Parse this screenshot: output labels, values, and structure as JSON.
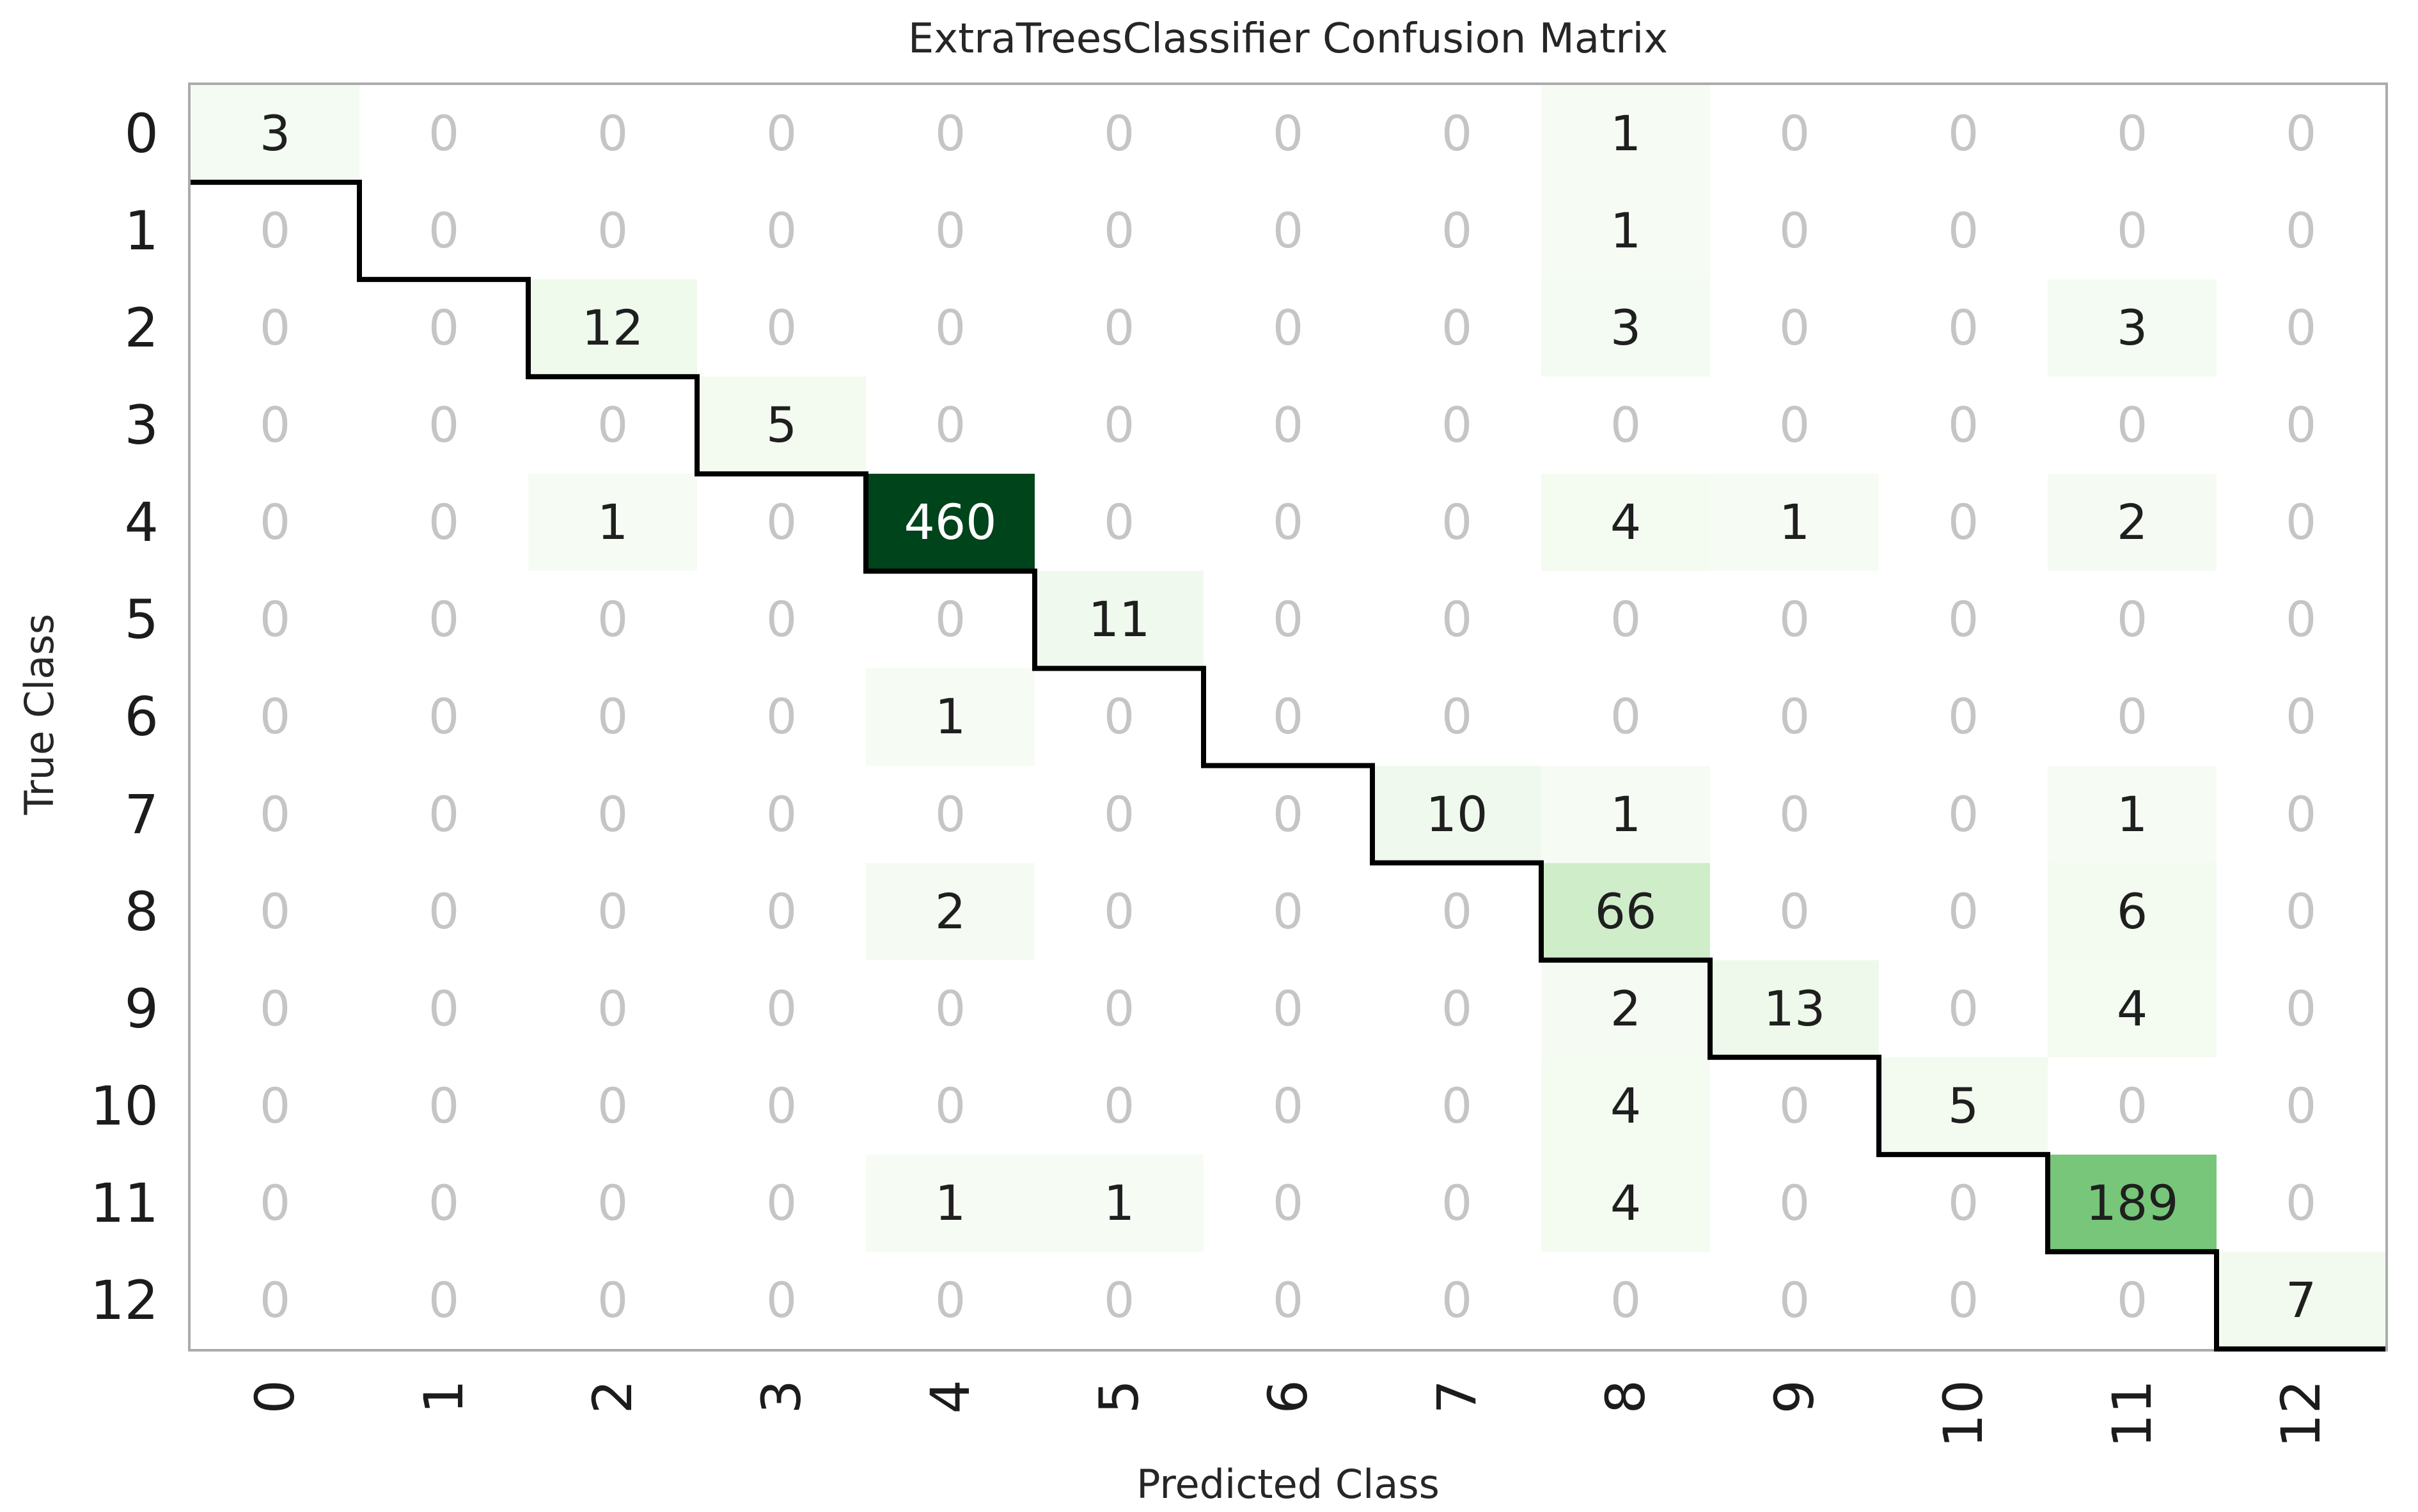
{
  "chart_data": {
    "type": "heatmap",
    "title": "ExtraTreesClassifier Confusion Matrix",
    "xlabel": "Predicted Class",
    "ylabel": "True Class",
    "x_tick_labels": [
      "0",
      "1",
      "2",
      "3",
      "4",
      "5",
      "6",
      "7",
      "8",
      "9",
      "10",
      "11",
      "12"
    ],
    "y_tick_labels": [
      "0",
      "1",
      "2",
      "3",
      "4",
      "5",
      "6",
      "7",
      "8",
      "9",
      "10",
      "11",
      "12"
    ],
    "matrix": [
      [
        3,
        0,
        0,
        0,
        0,
        0,
        0,
        0,
        1,
        0,
        0,
        0,
        0
      ],
      [
        0,
        0,
        0,
        0,
        0,
        0,
        0,
        0,
        1,
        0,
        0,
        0,
        0
      ],
      [
        0,
        0,
        12,
        0,
        0,
        0,
        0,
        0,
        3,
        0,
        0,
        3,
        0
      ],
      [
        0,
        0,
        0,
        5,
        0,
        0,
        0,
        0,
        0,
        0,
        0,
        0,
        0
      ],
      [
        0,
        0,
        1,
        0,
        460,
        0,
        0,
        0,
        4,
        1,
        0,
        2,
        0
      ],
      [
        0,
        0,
        0,
        0,
        0,
        11,
        0,
        0,
        0,
        0,
        0,
        0,
        0
      ],
      [
        0,
        0,
        0,
        0,
        1,
        0,
        0,
        0,
        0,
        0,
        0,
        0,
        0
      ],
      [
        0,
        0,
        0,
        0,
        0,
        0,
        0,
        10,
        1,
        0,
        0,
        1,
        0
      ],
      [
        0,
        0,
        0,
        0,
        2,
        0,
        0,
        0,
        66,
        0,
        0,
        6,
        0
      ],
      [
        0,
        0,
        0,
        0,
        0,
        0,
        0,
        0,
        2,
        13,
        0,
        4,
        0
      ],
      [
        0,
        0,
        0,
        0,
        0,
        0,
        0,
        0,
        4,
        0,
        5,
        0,
        0
      ],
      [
        0,
        0,
        0,
        0,
        1,
        1,
        0,
        0,
        4,
        0,
        0,
        189,
        0
      ],
      [
        0,
        0,
        0,
        0,
        0,
        0,
        0,
        0,
        0,
        0,
        0,
        0,
        7
      ]
    ],
    "vmax": 460,
    "colormap": "Greens",
    "colormap_anchors": [
      "#f7fcf5",
      "#e5f5e0",
      "#c7e9c0",
      "#a1d99b",
      "#74c476",
      "#41ab5d",
      "#238b45",
      "#006d2c",
      "#00441b"
    ],
    "color_gamma": 0.8,
    "zero_cell_bg": "#ffffff",
    "zero_text_color": "#c5c5c5",
    "value_text_color": "#1f1f1f",
    "high_value_text_color": "#ffffff",
    "white_text_threshold": 0.6,
    "diagonal_line_color": "#000000",
    "diagonal_line_width": 8,
    "spine_color": "#ababab",
    "grid": false,
    "legend": false
  }
}
